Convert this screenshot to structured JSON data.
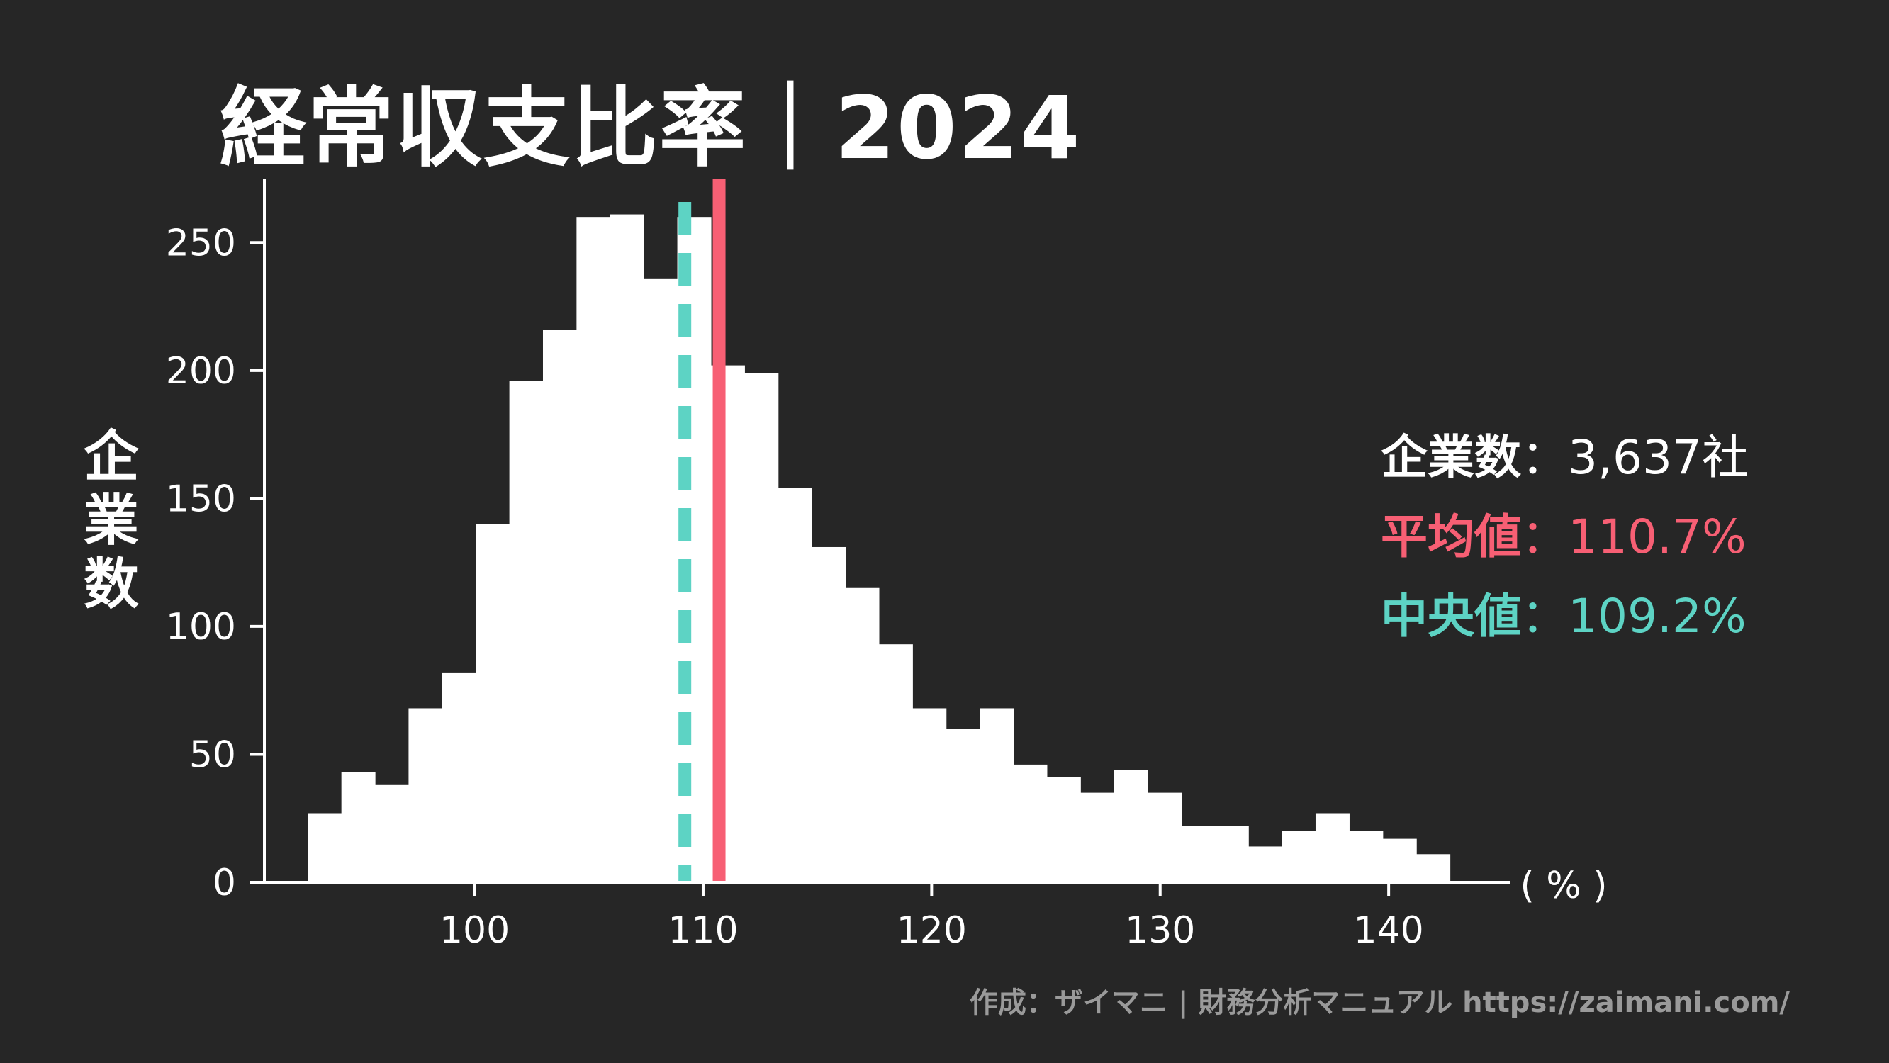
{
  "title": "経常収支比率｜2024",
  "y_label_chars": [
    "企",
    "業",
    "数"
  ],
  "x_unit": "( % )",
  "stats": {
    "count_label": "企業数",
    "count_value": "3,637社",
    "mean_label": "平均値",
    "mean_value": "110.7%",
    "median_label": "中央値",
    "median_value": "109.2%",
    "separator": "："
  },
  "credit": "作成：ザイマニ | 財務分析マニュアル https://zaimani.com/",
  "colors": {
    "background": "#262626",
    "bars": "#ffffff",
    "mean": "#f75f74",
    "median": "#5dd3c4",
    "credit": "#9a9a9a"
  },
  "chart_data": {
    "type": "histogram",
    "bin_width": 1.47,
    "bins_start": [
      92.7,
      94.17,
      95.64,
      97.11,
      98.58,
      100.05,
      101.52,
      102.99,
      104.46,
      105.93,
      107.4,
      108.87,
      110.34,
      111.81,
      113.28,
      114.75,
      116.22,
      117.69,
      119.16,
      120.63,
      122.1,
      123.57,
      125.04,
      126.51,
      127.98,
      129.45,
      130.92,
      132.39,
      133.86,
      135.33,
      136.8,
      138.27,
      139.74,
      141.21
    ],
    "values": [
      27,
      43,
      38,
      68,
      82,
      140,
      196,
      216,
      260,
      261,
      236,
      260,
      202,
      199,
      154,
      131,
      115,
      93,
      68,
      60,
      68,
      46,
      41,
      35,
      44,
      35,
      22,
      22,
      14,
      20,
      27,
      20,
      17,
      11
    ],
    "mean": 110.7,
    "median": 109.2,
    "xlim": [
      90.8,
      145.3
    ],
    "ylim": [
      0,
      275
    ],
    "xticks": [
      100,
      110,
      120,
      130,
      140
    ],
    "yticks": [
      0,
      50,
      100,
      150,
      200,
      250
    ],
    "xlabel": "( % )",
    "ylabel": "企業数",
    "grid": false,
    "legend": "none"
  }
}
